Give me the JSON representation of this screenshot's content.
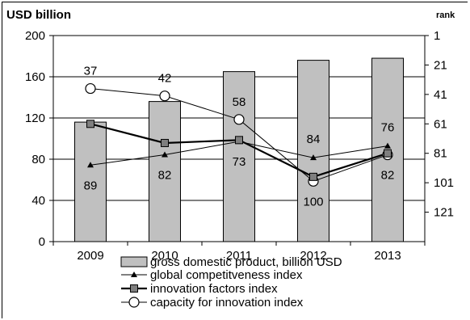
{
  "chart_data": {
    "type": "bar",
    "categories": [
      "2009",
      "2010",
      "2011",
      "2012",
      "2013"
    ],
    "left_axis": {
      "label": "USD billion",
      "ylim": [
        0,
        200
      ],
      "ticks": [
        "0",
        "40",
        "80",
        "120",
        "160",
        "200"
      ]
    },
    "right_axis": {
      "label": "rank",
      "ylim": [
        1,
        141
      ],
      "inverted": true,
      "ticks": [
        "1",
        "21",
        "41",
        "61",
        "81",
        "101",
        "121"
      ]
    },
    "series": [
      {
        "name": "gross domestic product, billion USD",
        "type": "bar",
        "axis": "left",
        "values": [
          116,
          136,
          165,
          176,
          178
        ],
        "color": "#c0c0c0"
      },
      {
        "name": "global competitveness index",
        "type": "line",
        "axis": "right",
        "marker": "triangle",
        "values": [
          89,
          82,
          73,
          84,
          76
        ],
        "labels": [
          "89",
          "82",
          "73",
          "84",
          "76"
        ],
        "color": "#000000"
      },
      {
        "name": "innovation factors index",
        "type": "line",
        "axis": "right",
        "marker": "square",
        "values": [
          61,
          74,
          72,
          97,
          81
        ],
        "color": "#000000"
      },
      {
        "name": "capacity for innovation index",
        "type": "line",
        "axis": "right",
        "marker": "circle",
        "values": [
          37,
          42,
          58,
          100,
          82
        ],
        "labels": [
          "37",
          "42",
          "58",
          "100",
          "82"
        ],
        "color": "#000000"
      }
    ],
    "grid": true,
    "legend": "bottom"
  }
}
